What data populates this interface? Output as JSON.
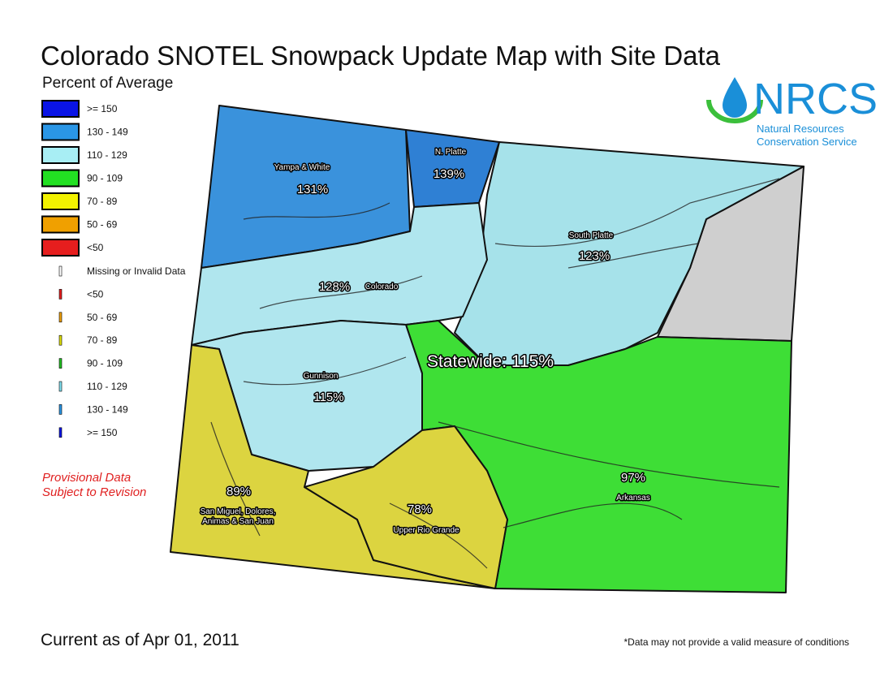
{
  "header": {
    "title": "Colorado SNOTEL Snowpack Update Map with Site Data",
    "subtitle": "Percent of Average"
  },
  "logo": {
    "name": "NRCS",
    "line1": "Natural Resources",
    "line2": "Conservation Service",
    "color": "#1a8fd8",
    "accent": "#3bbf3b"
  },
  "legend": {
    "classes": [
      {
        "label": ">= 150",
        "color": "#0a14e6"
      },
      {
        "label": "130 - 149",
        "color": "#2a96e6"
      },
      {
        "label": "110 - 129",
        "color": "#a8eef4"
      },
      {
        "label": "90 - 109",
        "color": "#22e022"
      },
      {
        "label": "70 - 89",
        "color": "#f2f200"
      },
      {
        "label": "50 - 69",
        "color": "#f0a000"
      },
      {
        "label": "<50",
        "color": "#e61e1e"
      }
    ],
    "sites": [
      {
        "label": "Missing or Invalid Data",
        "color": "#ffffff"
      },
      {
        "label": "<50",
        "color": "#e61e1e"
      },
      {
        "label": "50 - 69",
        "color": "#f0a000"
      },
      {
        "label": "70 - 89",
        "color": "#e0e000"
      },
      {
        "label": "90 - 109",
        "color": "#22c022"
      },
      {
        "label": "110 - 129",
        "color": "#80e0f0"
      },
      {
        "label": "130 - 149",
        "color": "#2a96e6"
      },
      {
        "label": ">= 150",
        "color": "#0a14e6"
      }
    ]
  },
  "notice": {
    "line1": "Provisional Data",
    "line2": "Subject to Revision"
  },
  "basins": [
    {
      "name": "Yampa & White",
      "percent": "131%",
      "color": "#3a92dc"
    },
    {
      "name": "N. Platte",
      "percent": "139%",
      "color": "#2f80d4"
    },
    {
      "name": "South Platte",
      "percent": "123%",
      "color": "#a6e2ea"
    },
    {
      "name": "Colorado",
      "percent": "128%",
      "color": "#b0e6ee"
    },
    {
      "name": "Gunnison",
      "percent": "115%",
      "color": "#b0e6ee"
    },
    {
      "name_lines": [
        "San Miguel, Dolores,",
        "Animas & San Juan"
      ],
      "percent": "89%",
      "color": "#dcd440"
    },
    {
      "name": "Upper Rio Grande",
      "percent": "78%",
      "color": "#dcd440"
    },
    {
      "name": "Arkansas",
      "percent": "97%",
      "color": "#3ede36"
    }
  ],
  "no_data_color": "#cfcfcf",
  "statewide": "Statewide: 115%",
  "footer": {
    "date": "Current as of Apr 01, 2011",
    "note": "*Data may not provide a valid measure of conditions"
  }
}
